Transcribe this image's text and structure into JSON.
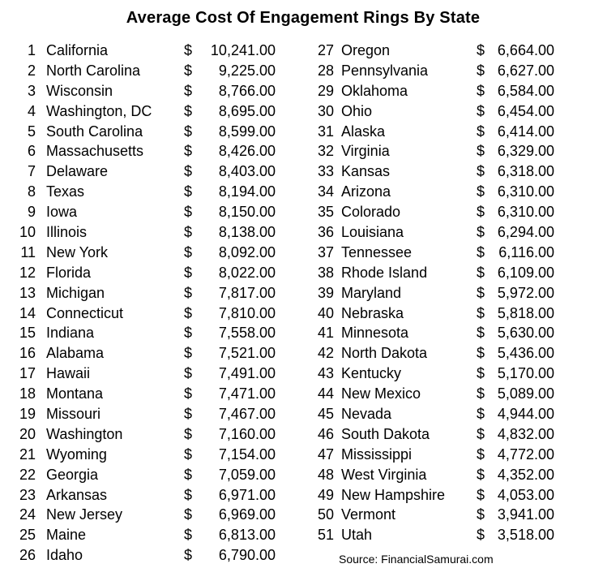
{
  "page_title": "Average Cost Of Engagement Rings By State",
  "source_note": "Source: FinancialSamurai.com",
  "currency_symbol": "$",
  "chart_data": {
    "type": "table",
    "title": "Average Cost Of Engagement Rings By State",
    "source": "FinancialSamurai.com",
    "value_format": "USD, two decimals, accounting style",
    "layout": "two columns: ranks 1-26 left, ranks 27-51 right",
    "rows": [
      {
        "rank": 1,
        "state": "California",
        "cost": 10241.0
      },
      {
        "rank": 2,
        "state": "North Carolina",
        "cost": 9225.0
      },
      {
        "rank": 3,
        "state": "Wisconsin",
        "cost": 8766.0
      },
      {
        "rank": 4,
        "state": "Washington, DC",
        "cost": 8695.0
      },
      {
        "rank": 5,
        "state": "South Carolina",
        "cost": 8599.0
      },
      {
        "rank": 6,
        "state": "Massachusetts",
        "cost": 8426.0
      },
      {
        "rank": 7,
        "state": "Delaware",
        "cost": 8403.0
      },
      {
        "rank": 8,
        "state": "Texas",
        "cost": 8194.0
      },
      {
        "rank": 9,
        "state": "Iowa",
        "cost": 8150.0
      },
      {
        "rank": 10,
        "state": "Illinois",
        "cost": 8138.0
      },
      {
        "rank": 11,
        "state": "New York",
        "cost": 8092.0
      },
      {
        "rank": 12,
        "state": "Florida",
        "cost": 8022.0
      },
      {
        "rank": 13,
        "state": "Michigan",
        "cost": 7817.0
      },
      {
        "rank": 14,
        "state": "Connecticut",
        "cost": 7810.0
      },
      {
        "rank": 15,
        "state": "Indiana",
        "cost": 7558.0
      },
      {
        "rank": 16,
        "state": "Alabama",
        "cost": 7521.0
      },
      {
        "rank": 17,
        "state": "Hawaii",
        "cost": 7491.0
      },
      {
        "rank": 18,
        "state": "Montana",
        "cost": 7471.0
      },
      {
        "rank": 19,
        "state": "Missouri",
        "cost": 7467.0
      },
      {
        "rank": 20,
        "state": "Washington",
        "cost": 7160.0
      },
      {
        "rank": 21,
        "state": "Wyoming",
        "cost": 7154.0
      },
      {
        "rank": 22,
        "state": "Georgia",
        "cost": 7059.0
      },
      {
        "rank": 23,
        "state": "Arkansas",
        "cost": 6971.0
      },
      {
        "rank": 24,
        "state": "New Jersey",
        "cost": 6969.0
      },
      {
        "rank": 25,
        "state": "Maine",
        "cost": 6813.0
      },
      {
        "rank": 26,
        "state": "Idaho",
        "cost": 6790.0
      },
      {
        "rank": 27,
        "state": "Oregon",
        "cost": 6664.0
      },
      {
        "rank": 28,
        "state": "Pennsylvania",
        "cost": 6627.0
      },
      {
        "rank": 29,
        "state": "Oklahoma",
        "cost": 6584.0
      },
      {
        "rank": 30,
        "state": "Ohio",
        "cost": 6454.0
      },
      {
        "rank": 31,
        "state": "Alaska",
        "cost": 6414.0
      },
      {
        "rank": 32,
        "state": "Virginia",
        "cost": 6329.0
      },
      {
        "rank": 33,
        "state": "Kansas",
        "cost": 6318.0
      },
      {
        "rank": 34,
        "state": "Arizona",
        "cost": 6310.0
      },
      {
        "rank": 35,
        "state": "Colorado",
        "cost": 6310.0
      },
      {
        "rank": 36,
        "state": "Louisiana",
        "cost": 6294.0
      },
      {
        "rank": 37,
        "state": "Tennessee",
        "cost": 6116.0
      },
      {
        "rank": 38,
        "state": "Rhode Island",
        "cost": 6109.0
      },
      {
        "rank": 39,
        "state": "Maryland",
        "cost": 5972.0
      },
      {
        "rank": 40,
        "state": "Nebraska",
        "cost": 5818.0
      },
      {
        "rank": 41,
        "state": "Minnesota",
        "cost": 5630.0
      },
      {
        "rank": 42,
        "state": "North Dakota",
        "cost": 5436.0
      },
      {
        "rank": 43,
        "state": "Kentucky",
        "cost": 5170.0
      },
      {
        "rank": 44,
        "state": "New Mexico",
        "cost": 5089.0
      },
      {
        "rank": 45,
        "state": "Nevada",
        "cost": 4944.0
      },
      {
        "rank": 46,
        "state": "South Dakota",
        "cost": 4832.0
      },
      {
        "rank": 47,
        "state": "Mississippi",
        "cost": 4772.0
      },
      {
        "rank": 48,
        "state": "West Virginia",
        "cost": 4352.0
      },
      {
        "rank": 49,
        "state": "New Hampshire",
        "cost": 4053.0
      },
      {
        "rank": 50,
        "state": "Vermont",
        "cost": 3941.0
      },
      {
        "rank": 51,
        "state": "Utah",
        "cost": 3518.0
      }
    ]
  }
}
